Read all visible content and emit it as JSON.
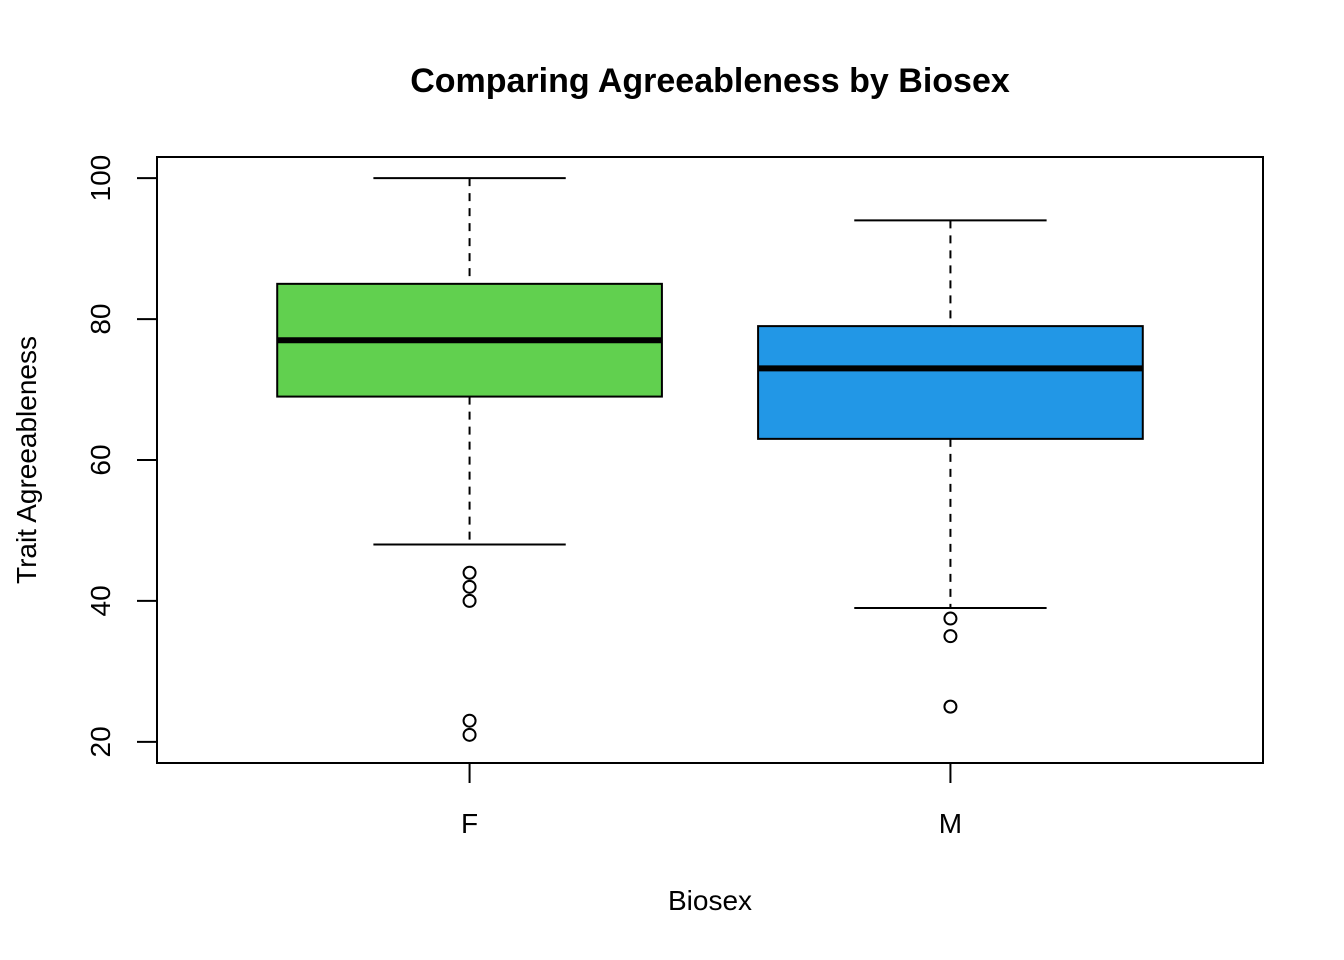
{
  "chart_data": {
    "type": "box",
    "title": "Comparing Agreeableness by Biosex",
    "xlabel": "Biosex",
    "ylabel": "Trait Agreeableness",
    "ylim": [
      17,
      103
    ],
    "yticks": [
      20,
      40,
      60,
      80,
      100
    ],
    "categories": [
      "F",
      "M"
    ],
    "grid": false,
    "legend": "none",
    "boxes": [
      {
        "category": "F",
        "color": "#61D04F",
        "whisker_low": 48,
        "q1": 69,
        "median": 77,
        "q3": 85,
        "whisker_high": 100,
        "outliers": [
          44,
          42,
          40,
          23,
          21
        ]
      },
      {
        "category": "M",
        "color": "#2297E6",
        "whisker_low": 39,
        "q1": 63,
        "median": 73,
        "q3": 79,
        "whisker_high": 94,
        "outliers": [
          37.5,
          35,
          25
        ]
      }
    ]
  }
}
